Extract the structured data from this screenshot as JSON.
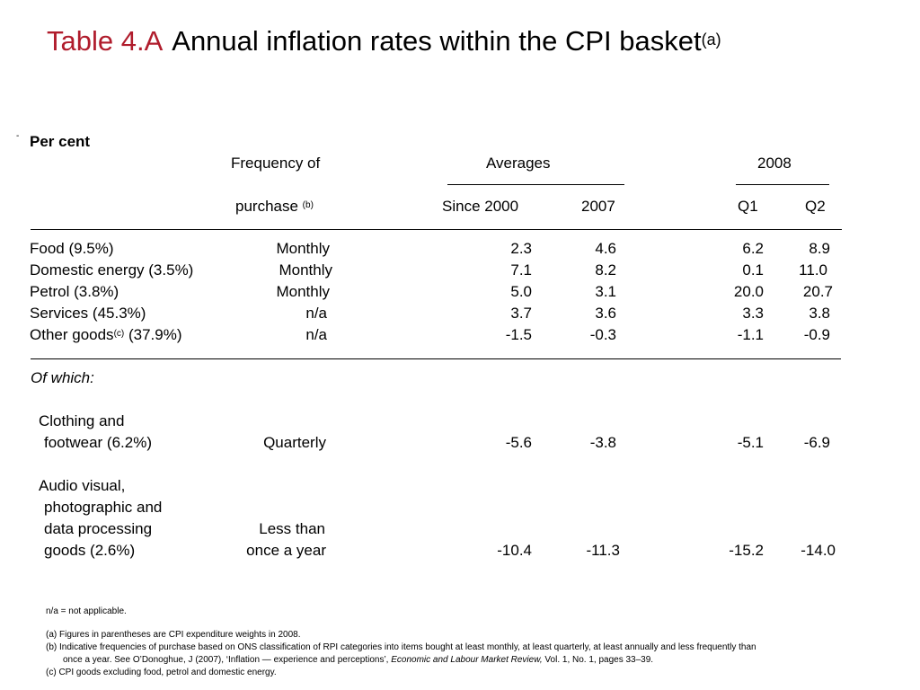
{
  "title": {
    "number": "Table 4.A",
    "text": "Annual inflation rates within the CPI basket",
    "note": "(a)"
  },
  "dash": "-",
  "unit_label": "Per cent",
  "headers": {
    "freq_line1": "Frequency of",
    "freq_line2": "purchase",
    "freq_note": "(b)",
    "averages": "Averages",
    "year2008": "2008",
    "since2000": "Since 2000",
    "y2007": "2007",
    "q1": "Q1",
    "q2": "Q2"
  },
  "rows": [
    {
      "label": "Food (9.5%)",
      "freq": "Monthly",
      "since2000": "2.3",
      "y2007": "4.6",
      "q1": "6.2",
      "q2": "8.9"
    },
    {
      "label": "Domestic energy (3.5%)",
      "freq": "Monthly",
      "since2000": "7.1",
      "y2007": "8.2",
      "q1": "0.1",
      "q2": "11.0"
    },
    {
      "label": "Petrol (3.8%)",
      "freq": "Monthly",
      "since2000": "5.0",
      "y2007": "3.1",
      "q1": "20.0",
      "q2": "20.7"
    },
    {
      "label": "Services (45.3%)",
      "freq": "n/a",
      "since2000": "3.7",
      "y2007": "3.6",
      "q1": "3.3",
      "q2": "3.8"
    },
    {
      "label_a": "Other goods",
      "label_note": "(c)",
      "label_b": " (37.9%)",
      "freq": "n/a",
      "since2000": "-1.5",
      "y2007": "-0.3",
      "q1": "-1.1",
      "q2": "-0.9"
    }
  ],
  "of_which": "Of which:",
  "clothing": {
    "line1": "Clothing and",
    "line2": "footwear (6.2%)",
    "freq": "Quarterly",
    "since2000": "-5.6",
    "y2007": "-3.8",
    "q1": "-5.1",
    "q2": "-6.9"
  },
  "audio": {
    "line1": "Audio visual,",
    "line2": "photographic and",
    "line3": "data processing",
    "line4": "goods (2.6%)",
    "freq1": "Less than",
    "freq2": "once a year",
    "since2000": "-10.4",
    "y2007": "-11.3",
    "q1": "-15.2",
    "q2": "-14.0"
  },
  "footnotes": {
    "na": "n/a = not applicable.",
    "a": "(a)  Figures in parentheses are CPI expenditure weights in 2008.",
    "b1": "(b)  Indicative frequencies of purchase based on ONS classification of RPI categories into items bought at least monthly, at least quarterly, at least annually and less frequently than",
    "b2_pre": "once a year.  See O’Donoghue, J (2007), ‘Inflation — experience and perceptions’, ",
    "b2_journal": "Economic and Labour Market Review,",
    "b2_post": " Vol. 1, No. 1, pages 33–39.",
    "c": "(c)  CPI goods excluding food, petrol and domestic energy."
  }
}
